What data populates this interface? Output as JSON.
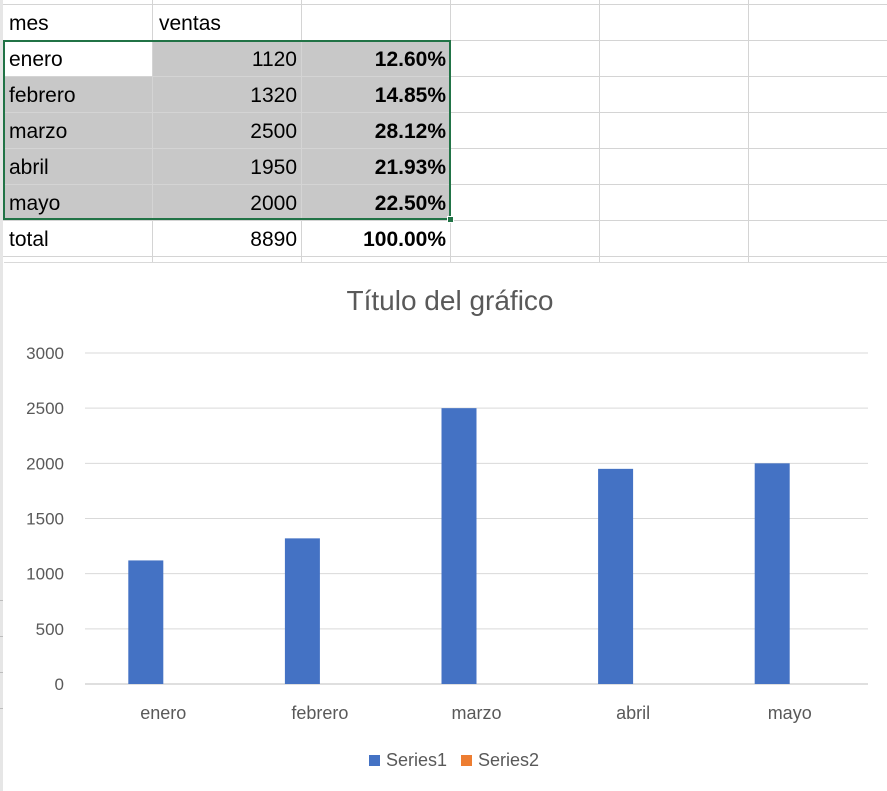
{
  "sheet": {
    "headers": [
      "mes",
      "ventas"
    ],
    "rows": [
      {
        "mes": "enero",
        "ventas": "1120",
        "pct": "12.60%"
      },
      {
        "mes": "febrero",
        "ventas": "1320",
        "pct": "14.85%"
      },
      {
        "mes": "marzo",
        "ventas": "2500",
        "pct": "28.12%"
      },
      {
        "mes": "abril",
        "ventas": "1950",
        "pct": "21.93%"
      },
      {
        "mes": "mayo",
        "ventas": "2000",
        "pct": "22.50%"
      }
    ],
    "total": {
      "mes": "total",
      "ventas": "8890",
      "pct": "100.00%"
    },
    "selection_color": "#217346",
    "shade_color": "#c8c8c8"
  },
  "chart_data": {
    "type": "bar",
    "title": "Título del gráfico",
    "categories": [
      "enero",
      "febrero",
      "marzo",
      "abril",
      "mayo"
    ],
    "series": [
      {
        "name": "Series1",
        "color": "#4472c4",
        "values": [
          1120,
          1320,
          2500,
          1950,
          2000
        ]
      },
      {
        "name": "Series2",
        "color": "#ed7d31",
        "values": [
          null,
          null,
          null,
          null,
          null
        ]
      }
    ],
    "yticks": [
      "0",
      "500",
      "1000",
      "1500",
      "2000",
      "2500",
      "3000"
    ],
    "ylim": [
      0,
      3000
    ],
    "grid": true,
    "legend": "bottom"
  }
}
